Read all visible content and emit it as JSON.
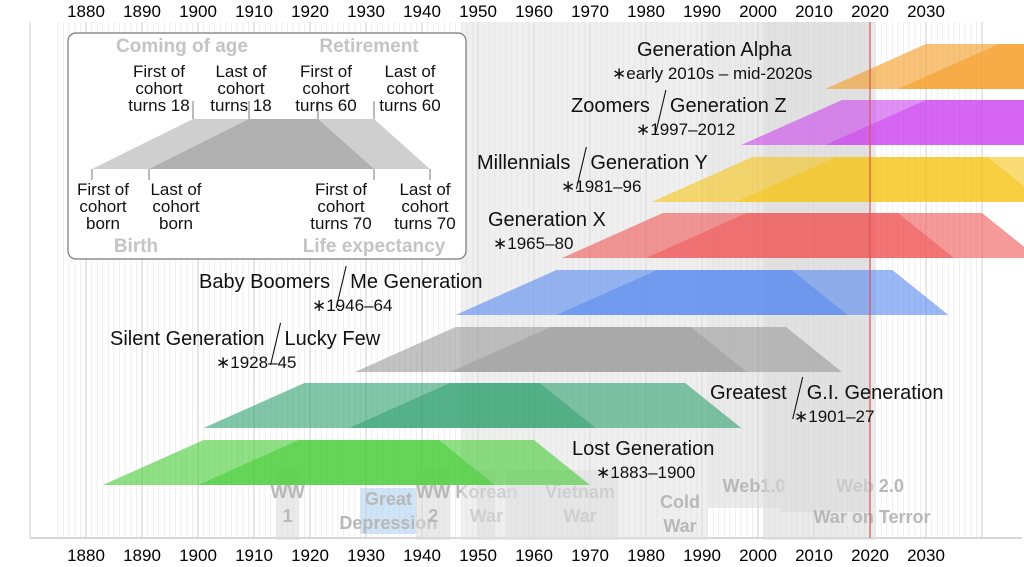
{
  "chart_data": {
    "type": "area",
    "x_ticks": [
      1880,
      1890,
      1900,
      1910,
      1920,
      1930,
      1940,
      1950,
      1960,
      1970,
      1980,
      1990,
      2000,
      2010,
      2020,
      2030
    ],
    "xlim": [
      1875,
      2040
    ],
    "current_year_marker": 2020,
    "generations": [
      {
        "id": "lost",
        "names": [
          "Lost Generation"
        ],
        "years_label": "∗1883–1900",
        "birth_start": 1883,
        "birth_end": 1900,
        "color": "#44cc33"
      },
      {
        "id": "greatest",
        "names": [
          "Greatest",
          "G.I. Generation"
        ],
        "years_label": "∗1901–27",
        "birth_start": 1901,
        "birth_end": 1927,
        "color": "#2fa070"
      },
      {
        "id": "silent",
        "names": [
          "Silent Generation",
          "Lucky Few"
        ],
        "years_label": "∗1928–45",
        "birth_start": 1928,
        "birth_end": 1945,
        "color": "#9a9a9a"
      },
      {
        "id": "boomers",
        "names": [
          "Baby Boomers",
          "Me Generation"
        ],
        "years_label": "∗1946–64",
        "birth_start": 1946,
        "birth_end": 1964,
        "color": "#5588ee"
      },
      {
        "id": "genx",
        "names": [
          "Generation X"
        ],
        "years_label": "∗1965–80",
        "birth_start": 1965,
        "birth_end": 1980,
        "color": "#ee5555"
      },
      {
        "id": "millennials",
        "names": [
          "Millennials",
          "Generation Y"
        ],
        "years_label": "∗1981–96",
        "birth_start": 1981,
        "birth_end": 1996,
        "color": "#f5c518"
      },
      {
        "id": "genz",
        "names": [
          "Zoomers",
          "Generation Z"
        ],
        "years_label": "∗1997–2012",
        "birth_start": 1997,
        "birth_end": 2012,
        "color": "#cc44ee"
      },
      {
        "id": "alpha",
        "names": [
          "Generation Alpha"
        ],
        "years_label": "∗early 2010s – mid-2020s",
        "birth_start": 2012,
        "birth_end": 2025,
        "color": "#f59a20"
      }
    ],
    "events": [
      {
        "lines": [
          "WW",
          "1"
        ],
        "start": 1914,
        "end": 1918,
        "color": "#d8d8d8"
      },
      {
        "lines": [
          "Great",
          "Depression"
        ],
        "start": 1929,
        "end": 1939,
        "color": "#a8cff0"
      },
      {
        "lines": [
          "WW",
          "2"
        ],
        "start": 1939,
        "end": 1945,
        "color": "#d8d8d8"
      },
      {
        "lines": [
          "Korean",
          "War"
        ],
        "start": 1950,
        "end": 1953,
        "color": "#d8d8d8"
      },
      {
        "lines": [
          "Vietnam",
          "War"
        ],
        "start": 1955,
        "end": 1975,
        "color": "#d8d8d8"
      },
      {
        "lines": [
          "Cold",
          "War"
        ],
        "start": 1947,
        "end": 1991,
        "color": "#e2e2e2"
      },
      {
        "lines": [
          "Web1.0"
        ],
        "start": 1991,
        "end": 2004,
        "color": "#d8d8d8"
      },
      {
        "lines": [
          "Web 2.0"
        ],
        "start": 2004,
        "end": 2020,
        "color": "#d8d8d8"
      },
      {
        "lines": [
          "War on Terror"
        ],
        "start": 2001,
        "end": 2021,
        "color": "#d8d8d8"
      }
    ],
    "legend": {
      "headings": {
        "coming_of_age": "Coming of age",
        "retirement": "Retirement",
        "birth": "Birth",
        "life_expectancy": "Life expectancy"
      },
      "top_labels": [
        [
          "First of",
          "cohort",
          "turns 18"
        ],
        [
          "Last of",
          "cohort",
          "turns 18"
        ],
        [
          "First of",
          "cohort",
          "turns 60"
        ],
        [
          "Last of",
          "cohort",
          "turns 60"
        ]
      ],
      "bottom_labels": [
        [
          "First of",
          "cohort",
          "born"
        ],
        [
          "Last of",
          "cohort",
          "born"
        ],
        [
          "First of",
          "cohort",
          "turns 70"
        ],
        [
          "Last of",
          "cohort",
          "turns 70"
        ]
      ]
    }
  }
}
